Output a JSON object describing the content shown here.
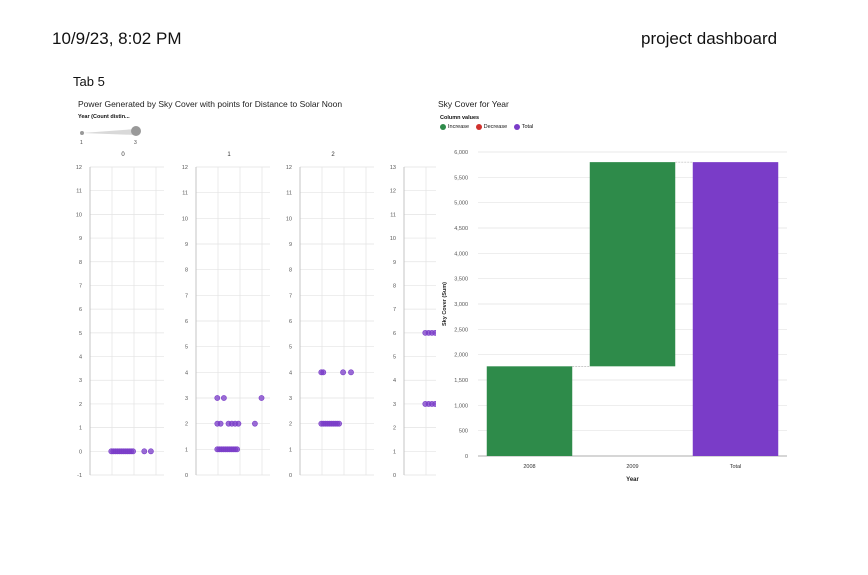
{
  "header": {
    "date": "10/9/23, 8:02 PM",
    "title": "project dashboard"
  },
  "tab": {
    "label": "Tab 5"
  },
  "left_chart": {
    "title": "Power Generated by Sky Cover with points for Distance to Solar Noon",
    "size_legend": {
      "title": "Year (Count distin...",
      "min_label": "1",
      "max_label": "3"
    }
  },
  "right_chart": {
    "title": "Sky Cover for Year",
    "legend_title": "Column values",
    "legend": [
      {
        "label": "Increase",
        "color": "#2e8b4a"
      },
      {
        "label": "Decrease",
        "color": "#d0312d"
      },
      {
        "label": "Total",
        "color": "#7a3cc8"
      }
    ]
  },
  "colors": {
    "point": "#7a3cc8",
    "increase": "#2e8b4a",
    "total": "#7a3cc8",
    "grid": "#e3e3e3"
  },
  "chart_data": [
    {
      "type": "scatter",
      "title": "Power Generated by Sky Cover with points for Distance to Solar Noon",
      "facets": [
        {
          "label": "0",
          "ylim": [
            -1,
            12
          ],
          "yticks": [
            "-1",
            "0",
            "1",
            "2",
            "3",
            "4",
            "5",
            "6",
            "7",
            "8",
            "9",
            "10",
            "11",
            "12"
          ],
          "points": [
            {
              "x": 0.05,
              "y": 0
            },
            {
              "x": 0.08,
              "y": 0
            },
            {
              "x": 0.11,
              "y": 0
            },
            {
              "x": 0.14,
              "y": 0
            },
            {
              "x": 0.17,
              "y": 0
            },
            {
              "x": 0.2,
              "y": 0
            },
            {
              "x": 0.23,
              "y": 0
            },
            {
              "x": 0.26,
              "y": 0
            },
            {
              "x": 0.29,
              "y": 0
            },
            {
              "x": 0.32,
              "y": 0
            },
            {
              "x": 0.35,
              "y": 0
            },
            {
              "x": 0.38,
              "y": 0
            },
            {
              "x": 0.55,
              "y": 0
            },
            {
              "x": 0.65,
              "y": 0
            }
          ]
        },
        {
          "label": "1",
          "ylim": [
            0,
            12
          ],
          "yticks": [
            "0",
            "1",
            "2",
            "3",
            "4",
            "5",
            "6",
            "7",
            "8",
            "9",
            "10",
            "11",
            "12"
          ],
          "points": [
            {
              "x": 0.05,
              "y": 1
            },
            {
              "x": 0.08,
              "y": 1
            },
            {
              "x": 0.11,
              "y": 1
            },
            {
              "x": 0.14,
              "y": 1
            },
            {
              "x": 0.17,
              "y": 1
            },
            {
              "x": 0.2,
              "y": 1
            },
            {
              "x": 0.23,
              "y": 1
            },
            {
              "x": 0.26,
              "y": 1
            },
            {
              "x": 0.29,
              "y": 1
            },
            {
              "x": 0.32,
              "y": 1
            },
            {
              "x": 0.35,
              "y": 1
            },
            {
              "x": 0.05,
              "y": 2
            },
            {
              "x": 0.1,
              "y": 2
            },
            {
              "x": 0.22,
              "y": 2
            },
            {
              "x": 0.27,
              "y": 2
            },
            {
              "x": 0.32,
              "y": 2
            },
            {
              "x": 0.37,
              "y": 2
            },
            {
              "x": 0.62,
              "y": 2
            },
            {
              "x": 0.05,
              "y": 3
            },
            {
              "x": 0.15,
              "y": 3
            },
            {
              "x": 0.72,
              "y": 3
            }
          ]
        },
        {
          "label": "2",
          "ylim": [
            0,
            12
          ],
          "yticks": [
            "0",
            "1",
            "2",
            "3",
            "4",
            "5",
            "6",
            "7",
            "8",
            "9",
            "10",
            "11",
            "12"
          ],
          "points": [
            {
              "x": 0.05,
              "y": 2
            },
            {
              "x": 0.08,
              "y": 2
            },
            {
              "x": 0.11,
              "y": 2
            },
            {
              "x": 0.14,
              "y": 2
            },
            {
              "x": 0.17,
              "y": 2
            },
            {
              "x": 0.2,
              "y": 2
            },
            {
              "x": 0.23,
              "y": 2
            },
            {
              "x": 0.26,
              "y": 2
            },
            {
              "x": 0.29,
              "y": 2
            },
            {
              "x": 0.32,
              "y": 2
            },
            {
              "x": 0.05,
              "y": 4
            },
            {
              "x": 0.08,
              "y": 4
            },
            {
              "x": 0.38,
              "y": 4
            },
            {
              "x": 0.5,
              "y": 4
            }
          ]
        },
        {
          "label": "",
          "ylim": [
            0,
            13
          ],
          "yticks": [
            "0",
            "1",
            "2",
            "3",
            "4",
            "5",
            "6",
            "7",
            "8",
            "9",
            "10",
            "11",
            "12",
            "13"
          ],
          "points": [
            {
              "x": 0.05,
              "y": 3
            },
            {
              "x": 0.1,
              "y": 3
            },
            {
              "x": 0.15,
              "y": 3
            },
            {
              "x": 0.2,
              "y": 3
            },
            {
              "x": 0.25,
              "y": 3
            },
            {
              "x": 0.05,
              "y": 6
            },
            {
              "x": 0.1,
              "y": 6
            },
            {
              "x": 0.15,
              "y": 6
            },
            {
              "x": 0.2,
              "y": 6
            },
            {
              "x": 0.25,
              "y": 6
            }
          ]
        }
      ]
    },
    {
      "type": "bar",
      "subtype": "waterfall",
      "title": "Sky Cover for Year",
      "xlabel": "Year",
      "ylabel": "Sky Cover (Sum)",
      "ylim": [
        0,
        6000
      ],
      "yticks": [
        "0",
        "500",
        "1,000",
        "1,500",
        "2,000",
        "2,500",
        "3,000",
        "3,500",
        "4,000",
        "4,500",
        "5,000",
        "5,500",
        "6,000"
      ],
      "categories": [
        "2008",
        "2009",
        "Total"
      ],
      "bars": [
        {
          "category": "2008",
          "start": 0,
          "end": 1770,
          "kind": "Increase"
        },
        {
          "category": "2009",
          "start": 1770,
          "end": 5800,
          "kind": "Increase"
        },
        {
          "category": "Total",
          "start": 0,
          "end": 5800,
          "kind": "Total"
        }
      ]
    }
  ]
}
